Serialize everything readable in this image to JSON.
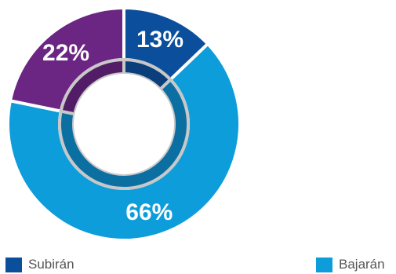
{
  "chart_data": {
    "type": "pie",
    "title": "",
    "categories": [
      "Subirán",
      "Bajarán",
      ""
    ],
    "values": [
      13,
      66,
      22
    ],
    "labels": [
      "13%",
      "66%",
      "22%"
    ],
    "colors": [
      "#0b4f9c",
      "#0d9ddb",
      "#6b2583"
    ],
    "inner_ring_colors": [
      "#0a3f7c",
      "#0b6fa2",
      "#521c66"
    ],
    "legend_position": "bottom"
  },
  "legend": [
    {
      "label": "Subirán",
      "color": "#0b4f9c"
    },
    {
      "label": "Bajarán",
      "color": "#0d9ddb"
    }
  ]
}
